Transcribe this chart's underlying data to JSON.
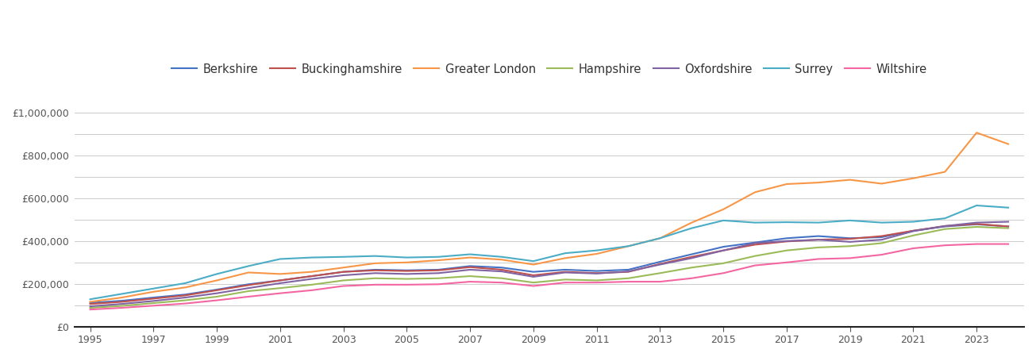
{
  "series": {
    "Berkshire": {
      "color": "#4472C4",
      "years": [
        1995,
        1996,
        1997,
        1998,
        1999,
        2000,
        2001,
        2002,
        2003,
        2004,
        2005,
        2006,
        2007,
        2008,
        2009,
        2010,
        2011,
        2012,
        2013,
        2014,
        2015,
        2016,
        2017,
        2018,
        2019,
        2020,
        2021,
        2022,
        2023,
        2024
      ],
      "values": [
        113000,
        123000,
        138000,
        152000,
        175000,
        200000,
        218000,
        238000,
        258000,
        268000,
        265000,
        268000,
        285000,
        278000,
        258000,
        268000,
        262000,
        268000,
        305000,
        340000,
        375000,
        395000,
        415000,
        425000,
        415000,
        420000,
        450000,
        470000,
        480000,
        470000
      ]
    },
    "Buckinghamshire": {
      "color": "#C0504D",
      "years": [
        1995,
        1996,
        1997,
        1998,
        1999,
        2000,
        2001,
        2002,
        2003,
        2004,
        2005,
        2006,
        2007,
        2008,
        2009,
        2010,
        2011,
        2012,
        2013,
        2014,
        2015,
        2016,
        2017,
        2018,
        2019,
        2020,
        2021,
        2022,
        2023,
        2024
      ],
      "values": [
        108000,
        118000,
        133000,
        148000,
        172000,
        196000,
        218000,
        238000,
        258000,
        265000,
        262000,
        265000,
        280000,
        268000,
        242000,
        258000,
        252000,
        258000,
        295000,
        328000,
        358000,
        385000,
        400000,
        408000,
        412000,
        425000,
        450000,
        472000,
        482000,
        470000
      ]
    },
    "Greater London": {
      "color": "#F79646",
      "years": [
        1995,
        1996,
        1997,
        1998,
        1999,
        2000,
        2001,
        2002,
        2003,
        2004,
        2005,
        2006,
        2007,
        2008,
        2009,
        2010,
        2011,
        2012,
        2013,
        2014,
        2015,
        2016,
        2017,
        2018,
        2019,
        2020,
        2021,
        2022,
        2023,
        2024
      ],
      "values": [
        118000,
        138000,
        165000,
        185000,
        218000,
        255000,
        248000,
        258000,
        278000,
        298000,
        302000,
        312000,
        325000,
        315000,
        292000,
        322000,
        342000,
        378000,
        415000,
        488000,
        550000,
        630000,
        668000,
        675000,
        688000,
        670000,
        695000,
        725000,
        908000,
        855000
      ]
    },
    "Hampshire": {
      "color": "#9BBB59",
      "years": [
        1995,
        1996,
        1997,
        1998,
        1999,
        2000,
        2001,
        2002,
        2003,
        2004,
        2005,
        2006,
        2007,
        2008,
        2009,
        2010,
        2011,
        2012,
        2013,
        2014,
        2015,
        2016,
        2017,
        2018,
        2019,
        2020,
        2021,
        2022,
        2023,
        2024
      ],
      "values": [
        90000,
        99000,
        112000,
        125000,
        142000,
        168000,
        182000,
        198000,
        218000,
        228000,
        225000,
        228000,
        238000,
        228000,
        208000,
        222000,
        218000,
        228000,
        252000,
        278000,
        298000,
        332000,
        358000,
        372000,
        378000,
        392000,
        428000,
        458000,
        468000,
        462000
      ]
    },
    "Oxfordshire": {
      "color": "#8064A2",
      "years": [
        1995,
        1996,
        1997,
        1998,
        1999,
        2000,
        2001,
        2002,
        2003,
        2004,
        2005,
        2006,
        2007,
        2008,
        2009,
        2010,
        2011,
        2012,
        2013,
        2014,
        2015,
        2016,
        2017,
        2018,
        2019,
        2020,
        2021,
        2022,
        2023,
        2024
      ],
      "values": [
        97000,
        108000,
        122000,
        138000,
        158000,
        182000,
        205000,
        225000,
        242000,
        252000,
        248000,
        252000,
        268000,
        260000,
        235000,
        255000,
        250000,
        260000,
        292000,
        322000,
        358000,
        392000,
        402000,
        408000,
        398000,
        408000,
        448000,
        472000,
        488000,
        492000
      ]
    },
    "Surrey": {
      "color": "#4BACC6",
      "years": [
        1995,
        1996,
        1997,
        1998,
        1999,
        2000,
        2001,
        2002,
        2003,
        2004,
        2005,
        2006,
        2007,
        2008,
        2009,
        2010,
        2011,
        2012,
        2013,
        2014,
        2015,
        2016,
        2017,
        2018,
        2019,
        2020,
        2021,
        2022,
        2023,
        2024
      ],
      "values": [
        130000,
        155000,
        180000,
        205000,
        248000,
        285000,
        318000,
        325000,
        328000,
        332000,
        325000,
        328000,
        340000,
        328000,
        308000,
        345000,
        358000,
        378000,
        415000,
        462000,
        498000,
        488000,
        490000,
        488000,
        498000,
        488000,
        492000,
        508000,
        568000,
        558000
      ]
    },
    "Wiltshire": {
      "color": "#F366A2",
      "years": [
        1995,
        1996,
        1997,
        1998,
        1999,
        2000,
        2001,
        2002,
        2003,
        2004,
        2005,
        2006,
        2007,
        2008,
        2009,
        2010,
        2011,
        2012,
        2013,
        2014,
        2015,
        2016,
        2017,
        2018,
        2019,
        2020,
        2021,
        2022,
        2023,
        2024
      ],
      "values": [
        82000,
        90000,
        100000,
        110000,
        125000,
        142000,
        158000,
        172000,
        192000,
        198000,
        198000,
        200000,
        212000,
        208000,
        192000,
        208000,
        208000,
        212000,
        212000,
        228000,
        252000,
        288000,
        302000,
        318000,
        322000,
        338000,
        368000,
        382000,
        388000,
        388000
      ]
    }
  },
  "ylim": [
    0,
    1050000
  ],
  "yticks": [
    0,
    100000,
    200000,
    300000,
    400000,
    500000,
    600000,
    700000,
    800000,
    900000,
    1000000
  ],
  "ytick_labels": [
    "£0",
    "",
    "£200,000",
    "",
    "£400,000",
    "",
    "£600,000",
    "",
    "£800,000",
    "",
    "£1,000,000"
  ],
  "background_color": "#ffffff",
  "grid_color": "#cccccc",
  "line_width": 1.5,
  "legend_ncol": 7,
  "legend_fontsize": 10.5,
  "figsize": [
    13.05,
    4.5
  ],
  "dpi": 100
}
